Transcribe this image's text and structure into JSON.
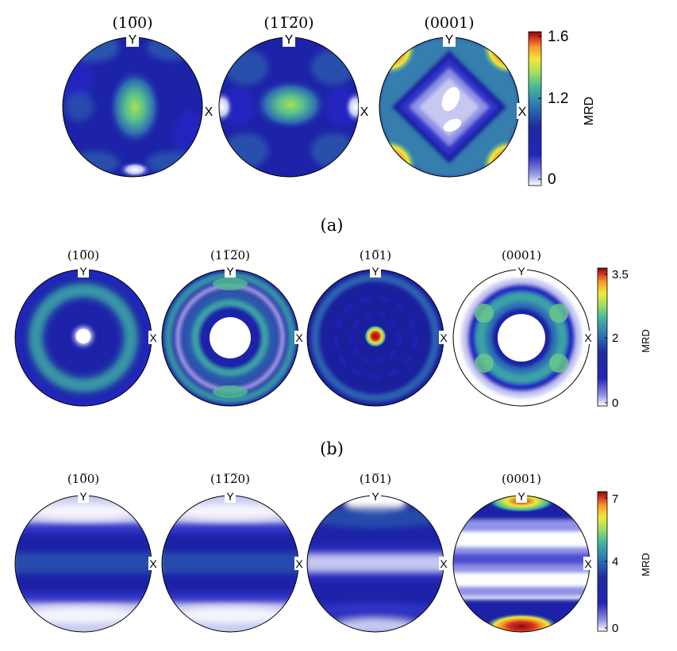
{
  "figure": {
    "rows": [
      {
        "id": "a",
        "caption": "(a)",
        "poles": [
          {
            "title": "(10̅0)",
            "base": "#1d23a8",
            "y_label": "Y",
            "x_label": "X"
          },
          {
            "title": "(11̅2̅0)",
            "base": "#1d23a8",
            "y_label": "Y",
            "x_label": "X"
          },
          {
            "title": "(0001)",
            "base": "#2a3bbd",
            "y_label": "Y",
            "x_label": "X"
          }
        ],
        "colorbar": {
          "title": "MRD",
          "ticks": [
            "1.6",
            "1.2",
            "0"
          ]
        }
      },
      {
        "id": "b",
        "caption": "(b)",
        "poles": [
          {
            "title": "(10̅0)",
            "base": "#1d23a8",
            "y_label": "Y",
            "x_label": "X"
          },
          {
            "title": "(11̅2̅0)",
            "base": "#1d23a8",
            "y_label": "Y",
            "x_label": "X"
          },
          {
            "title": "(10̅1)",
            "base": "#1a1f9e",
            "y_label": "Y",
            "x_label": "X"
          },
          {
            "title": "(0001)",
            "base": "#ffffff",
            "y_label": "Y",
            "x_label": "X"
          }
        ],
        "colorbar": {
          "title": "MRD",
          "ticks": [
            "3.5",
            "2",
            "0"
          ]
        }
      },
      {
        "id": "c",
        "caption": "",
        "poles": [
          {
            "title": "(10̅0)",
            "base": "#c9cbf0",
            "y_label": "Y",
            "x_label": "X"
          },
          {
            "title": "(11̅2̅0)",
            "base": "#c9cbf0",
            "y_label": "Y",
            "x_label": "X"
          },
          {
            "title": "(10̅1)",
            "base": "#1d23a8",
            "y_label": "Y",
            "x_label": "X"
          },
          {
            "title": "(0001)",
            "base": "#ffffff",
            "y_label": "Y",
            "x_label": "X"
          }
        ],
        "colorbar": {
          "title": "MRD",
          "ticks": [
            "7",
            "4",
            "0"
          ]
        }
      }
    ]
  },
  "colors": {
    "colormap": [
      "#ffffff",
      "#3035c8",
      "#1d23a8",
      "#2e6fb5",
      "#3fb4a0",
      "#a8e05a",
      "#f3e93a",
      "#f39a2a",
      "#d6301f",
      "#8b0d0d"
    ]
  }
}
